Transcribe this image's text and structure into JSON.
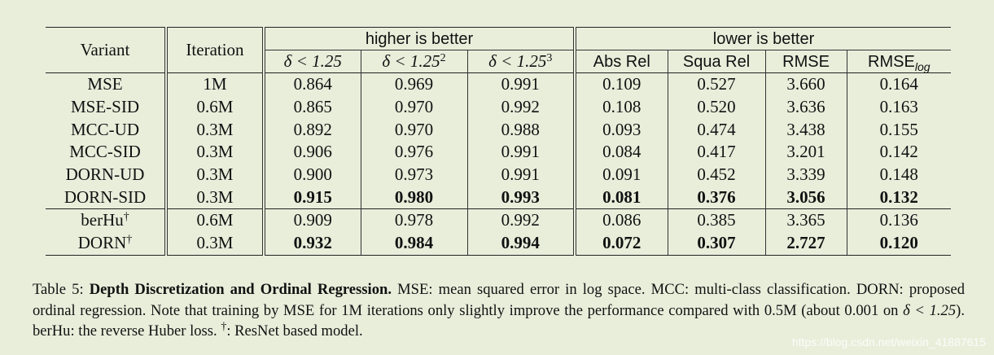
{
  "table": {
    "col_variant": "Variant",
    "col_iteration": "Iteration",
    "group_higher": "higher is better",
    "group_lower": "lower is better",
    "sub_headers": {
      "d1": "δ < 1.25",
      "d2_base": "δ < 1.25",
      "d2_exp": "2",
      "d3_base": "δ < 1.25",
      "d3_exp": "3",
      "absrel": "Abs Rel",
      "squarel": "Squa Rel",
      "rmse": "RMSE",
      "rmselog_base": "RMSE",
      "rmselog_sub": "log"
    },
    "rows": [
      {
        "variant": "MSE",
        "iter": "1M",
        "d1": "0.864",
        "d2": "0.969",
        "d3": "0.991",
        "absrel": "0.109",
        "squarel": "0.527",
        "rmse": "3.660",
        "rmselog": "0.164"
      },
      {
        "variant": "MSE-SID",
        "iter": "0.6M",
        "d1": "0.865",
        "d2": "0.970",
        "d3": "0.992",
        "absrel": "0.108",
        "squarel": "0.520",
        "rmse": "3.636",
        "rmselog": "0.163"
      },
      {
        "variant": "MCC-UD",
        "iter": "0.3M",
        "d1": "0.892",
        "d2": "0.970",
        "d3": "0.988",
        "absrel": "0.093",
        "squarel": "0.474",
        "rmse": "3.438",
        "rmselog": "0.155"
      },
      {
        "variant": "MCC-SID",
        "iter": "0.3M",
        "d1": "0.906",
        "d2": "0.976",
        "d3": "0.991",
        "absrel": "0.084",
        "squarel": "0.417",
        "rmse": "3.201",
        "rmselog": "0.142"
      },
      {
        "variant": "DORN-UD",
        "iter": "0.3M",
        "d1": "0.900",
        "d2": "0.973",
        "d3": "0.991",
        "absrel": "0.091",
        "squarel": "0.452",
        "rmse": "3.339",
        "rmselog": "0.148"
      },
      {
        "variant": "DORN-SID",
        "iter": "0.3M",
        "d1": "0.915",
        "d2": "0.980",
        "d3": "0.993",
        "absrel": "0.081",
        "squarel": "0.376",
        "rmse": "3.056",
        "rmselog": "0.132",
        "bold": true
      },
      {
        "variant": "berHu",
        "dagger": "†",
        "iter": "0.6M",
        "d1": "0.909",
        "d2": "0.978",
        "d3": "0.992",
        "absrel": "0.086",
        "squarel": "0.385",
        "rmse": "3.365",
        "rmselog": "0.136"
      },
      {
        "variant": "DORN",
        "dagger": "†",
        "iter": "0.3M",
        "d1": "0.932",
        "d2": "0.984",
        "d3": "0.994",
        "absrel": "0.072",
        "squarel": "0.307",
        "rmse": "2.727",
        "rmselog": "0.120",
        "bold": true
      }
    ]
  },
  "caption": {
    "label": "Table 5:",
    "title": "Depth Discretization and Ordinal Regression.",
    "body_1": "MSE: mean squared error in log space.  MCC: multi-class classification. DORN: proposed ordinal regression. Note that training by MSE for 1M iterations only slightly improve the performance compared with 0.5M (about 0.001 on",
    "math": "δ < 1.25",
    "body_2": "). berHu: the reverse Huber loss.",
    "dagger": "†",
    "body_3": ": ResNet based model."
  },
  "watermark": "https://blog.csdn.net/weixin_41887615"
}
